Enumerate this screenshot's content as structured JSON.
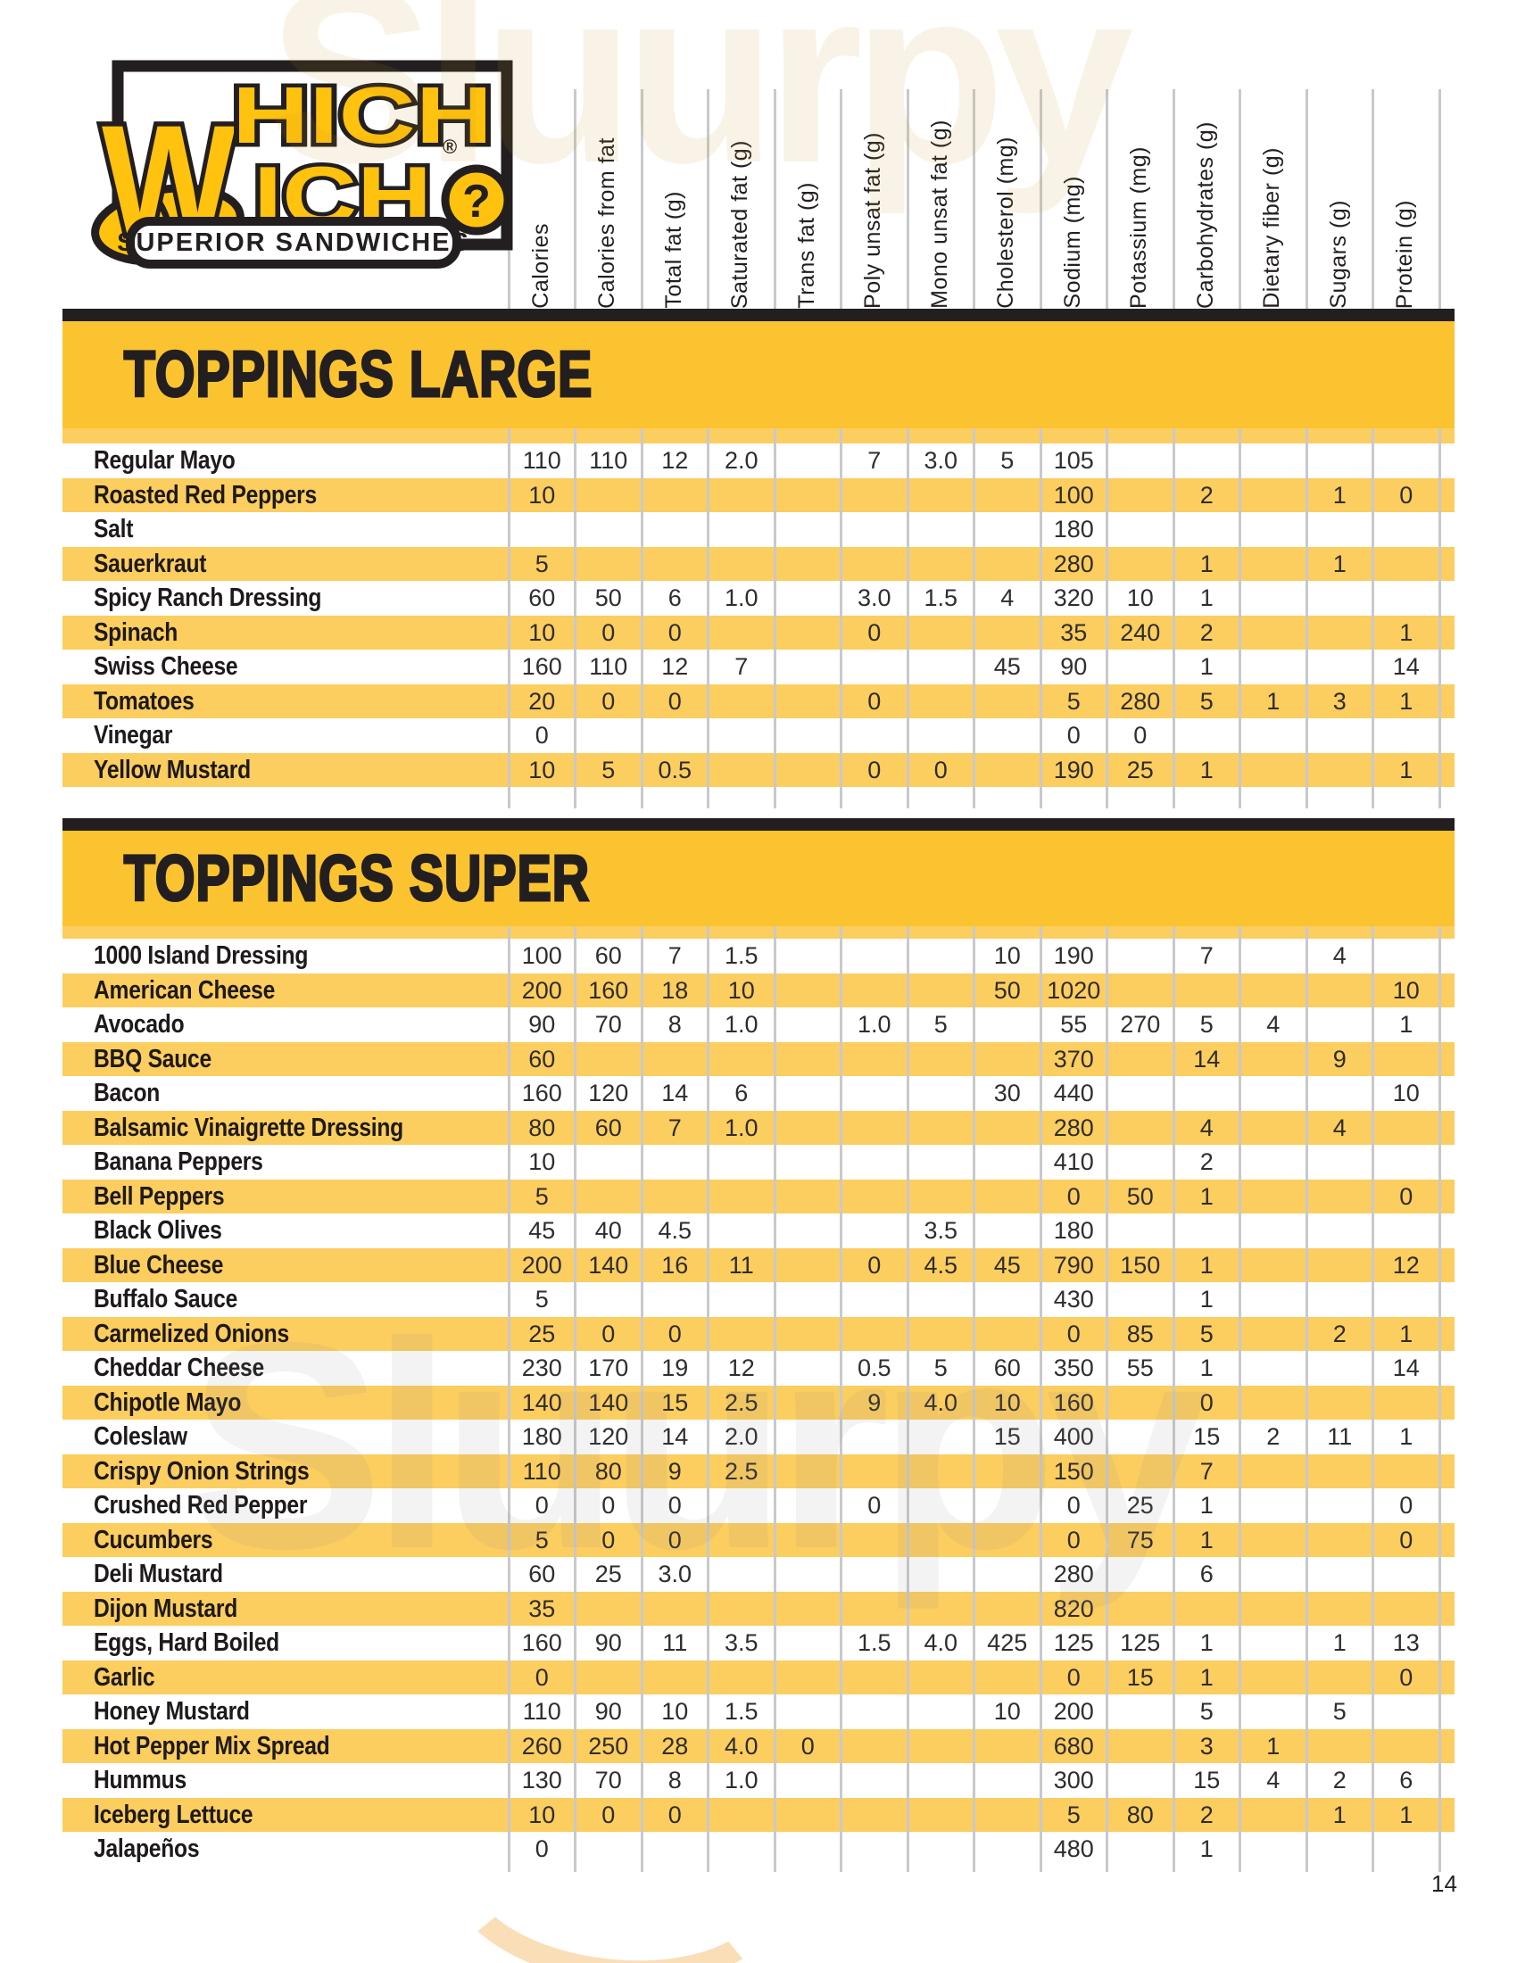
{
  "page": {
    "number": "14"
  },
  "logo": {
    "w": "W",
    "hich": "HICH",
    "ich": "ICH",
    "reg": "®",
    "qmark": "?",
    "tagline": "SUPERIOR SANDWICHES"
  },
  "watermark": {
    "text": "Sluurpy"
  },
  "colors": {
    "brand_yellow": "#FFC20E",
    "band_gold": "#FCC331",
    "row_stripe": "#FCCD5F",
    "ink": "#231F20"
  },
  "columns": [
    "Calories",
    "Calories from fat",
    "Total fat (g)",
    "Saturated fat (g)",
    "Trans fat (g)",
    "Poly unsat fat (g)",
    "Mono unsat fat (g)",
    "Cholesterol (mg)",
    "Sodium (mg)",
    "Potassium (mg)",
    "Carbohydrates (g)",
    "Dietary fiber (g)",
    "Sugars (g)",
    "Protein (g)"
  ],
  "sections": [
    {
      "title": "TOPPINGS LARGE",
      "rows": [
        {
          "name": "Regular Mayo",
          "values": [
            "110",
            "110",
            "12",
            "2.0",
            "",
            "7",
            "3.0",
            "5",
            "105",
            "",
            "",
            "",
            "",
            ""
          ]
        },
        {
          "name": "Roasted Red Peppers",
          "values": [
            "10",
            "",
            "",
            "",
            "",
            "",
            "",
            "",
            "100",
            "",
            "2",
            "",
            "1",
            "0"
          ]
        },
        {
          "name": "Salt",
          "values": [
            "",
            "",
            "",
            "",
            "",
            "",
            "",
            "",
            "180",
            "",
            "",
            "",
            "",
            ""
          ]
        },
        {
          "name": "Sauerkraut",
          "values": [
            "5",
            "",
            "",
            "",
            "",
            "",
            "",
            "",
            "280",
            "",
            "1",
            "",
            "1",
            ""
          ]
        },
        {
          "name": "Spicy Ranch Dressing",
          "values": [
            "60",
            "50",
            "6",
            "1.0",
            "",
            "3.0",
            "1.5",
            "4",
            "320",
            "10",
            "1",
            "",
            "",
            ""
          ]
        },
        {
          "name": "Spinach",
          "values": [
            "10",
            "0",
            "0",
            "",
            "",
            "0",
            "",
            "",
            "35",
            "240",
            "2",
            "",
            "",
            "1"
          ]
        },
        {
          "name": "Swiss Cheese",
          "values": [
            "160",
            "110",
            "12",
            "7",
            "",
            "",
            "",
            "45",
            "90",
            "",
            "1",
            "",
            "",
            "14"
          ]
        },
        {
          "name": "Tomatoes",
          "values": [
            "20",
            "0",
            "0",
            "",
            "",
            "0",
            "",
            "",
            "5",
            "280",
            "5",
            "1",
            "3",
            "1"
          ]
        },
        {
          "name": "Vinegar",
          "values": [
            "0",
            "",
            "",
            "",
            "",
            "",
            "",
            "",
            "0",
            "0",
            "",
            "",
            "",
            ""
          ]
        },
        {
          "name": "Yellow Mustard",
          "values": [
            "10",
            "5",
            "0.5",
            "",
            "",
            "0",
            "0",
            "",
            "190",
            "25",
            "1",
            "",
            "",
            "1"
          ]
        }
      ]
    },
    {
      "title": "TOPPINGS SUPER",
      "rows": [
        {
          "name": "1000 Island Dressing",
          "values": [
            "100",
            "60",
            "7",
            "1.5",
            "",
            "",
            "",
            "10",
            "190",
            "",
            "7",
            "",
            "4",
            ""
          ]
        },
        {
          "name": "American Cheese",
          "values": [
            "200",
            "160",
            "18",
            "10",
            "",
            "",
            "",
            "50",
            "1020",
            "",
            "",
            "",
            "",
            "10"
          ]
        },
        {
          "name": "Avocado",
          "values": [
            "90",
            "70",
            "8",
            "1.0",
            "",
            "1.0",
            "5",
            "",
            "55",
            "270",
            "5",
            "4",
            "",
            "1"
          ]
        },
        {
          "name": "BBQ Sauce",
          "values": [
            "60",
            "",
            "",
            "",
            "",
            "",
            "",
            "",
            "370",
            "",
            "14",
            "",
            "9",
            ""
          ]
        },
        {
          "name": "Bacon",
          "values": [
            "160",
            "120",
            "14",
            "6",
            "",
            "",
            "",
            "30",
            "440",
            "",
            "",
            "",
            "",
            "10"
          ]
        },
        {
          "name": "Balsamic Vinaigrette Dressing",
          "values": [
            "80",
            "60",
            "7",
            "1.0",
            "",
            "",
            "",
            "",
            "280",
            "",
            "4",
            "",
            "4",
            ""
          ]
        },
        {
          "name": "Banana Peppers",
          "values": [
            "10",
            "",
            "",
            "",
            "",
            "",
            "",
            "",
            "410",
            "",
            "2",
            "",
            "",
            ""
          ]
        },
        {
          "name": "Bell Peppers",
          "values": [
            "5",
            "",
            "",
            "",
            "",
            "",
            "",
            "",
            "0",
            "50",
            "1",
            "",
            "",
            "0"
          ]
        },
        {
          "name": "Black Olives",
          "values": [
            "45",
            "40",
            "4.5",
            "",
            "",
            "",
            "3.5",
            "",
            "180",
            "",
            "",
            "",
            "",
            ""
          ]
        },
        {
          "name": "Blue Cheese",
          "values": [
            "200",
            "140",
            "16",
            "11",
            "",
            "0",
            "4.5",
            "45",
            "790",
            "150",
            "1",
            "",
            "",
            "12"
          ]
        },
        {
          "name": "Buffalo Sauce",
          "values": [
            "5",
            "",
            "",
            "",
            "",
            "",
            "",
            "",
            "430",
            "",
            "1",
            "",
            "",
            ""
          ]
        },
        {
          "name": "Carmelized Onions",
          "values": [
            "25",
            "0",
            "0",
            "",
            "",
            "",
            "",
            "",
            "0",
            "85",
            "5",
            "",
            "2",
            "1"
          ]
        },
        {
          "name": "Cheddar Cheese",
          "values": [
            "230",
            "170",
            "19",
            "12",
            "",
            "0.5",
            "5",
            "60",
            "350",
            "55",
            "1",
            "",
            "",
            "14"
          ]
        },
        {
          "name": "Chipotle Mayo",
          "values": [
            "140",
            "140",
            "15",
            "2.5",
            "",
            "9",
            "4.0",
            "10",
            "160",
            "",
            "0",
            "",
            "",
            ""
          ]
        },
        {
          "name": "Coleslaw",
          "values": [
            "180",
            "120",
            "14",
            "2.0",
            "",
            "",
            "",
            "15",
            "400",
            "",
            "15",
            "2",
            "11",
            "1"
          ]
        },
        {
          "name": "Crispy Onion Strings",
          "values": [
            "110",
            "80",
            "9",
            "2.5",
            "",
            "",
            "",
            "",
            "150",
            "",
            "7",
            "",
            "",
            ""
          ]
        },
        {
          "name": "Crushed Red Pepper",
          "values": [
            "0",
            "0",
            "0",
            "",
            "",
            "0",
            "",
            "",
            "0",
            "25",
            "1",
            "",
            "",
            "0"
          ]
        },
        {
          "name": "Cucumbers",
          "values": [
            "5",
            "0",
            "0",
            "",
            "",
            "",
            "",
            "",
            "0",
            "75",
            "1",
            "",
            "",
            "0"
          ]
        },
        {
          "name": "Deli Mustard",
          "values": [
            "60",
            "25",
            "3.0",
            "",
            "",
            "",
            "",
            "",
            "280",
            "",
            "6",
            "",
            "",
            ""
          ]
        },
        {
          "name": "Dijon Mustard",
          "values": [
            "35",
            "",
            "",
            "",
            "",
            "",
            "",
            "",
            "820",
            "",
            "",
            "",
            "",
            ""
          ]
        },
        {
          "name": "Eggs, Hard Boiled",
          "values": [
            "160",
            "90",
            "11",
            "3.5",
            "",
            "1.5",
            "4.0",
            "425",
            "125",
            "125",
            "1",
            "",
            "1",
            "13"
          ]
        },
        {
          "name": "Garlic",
          "values": [
            "0",
            "",
            "",
            "",
            "",
            "",
            "",
            "",
            "0",
            "15",
            "1",
            "",
            "",
            "0"
          ]
        },
        {
          "name": "Honey Mustard",
          "values": [
            "110",
            "90",
            "10",
            "1.5",
            "",
            "",
            "",
            "10",
            "200",
            "",
            "5",
            "",
            "5",
            ""
          ]
        },
        {
          "name": "Hot Pepper Mix Spread",
          "values": [
            "260",
            "250",
            "28",
            "4.0",
            "0",
            "",
            "",
            "",
            "680",
            "",
            "3",
            "1",
            "",
            ""
          ]
        },
        {
          "name": "Hummus",
          "values": [
            "130",
            "70",
            "8",
            "1.0",
            "",
            "",
            "",
            "",
            "300",
            "",
            "15",
            "4",
            "2",
            "6"
          ]
        },
        {
          "name": "Iceberg Lettuce",
          "values": [
            "10",
            "0",
            "0",
            "",
            "",
            "",
            "",
            "",
            "5",
            "80",
            "2",
            "",
            "1",
            "1"
          ]
        },
        {
          "name": "Jalapeños",
          "values": [
            "0",
            "",
            "",
            "",
            "",
            "",
            "",
            "",
            "480",
            "",
            "1",
            "",
            "",
            ""
          ]
        }
      ]
    }
  ]
}
